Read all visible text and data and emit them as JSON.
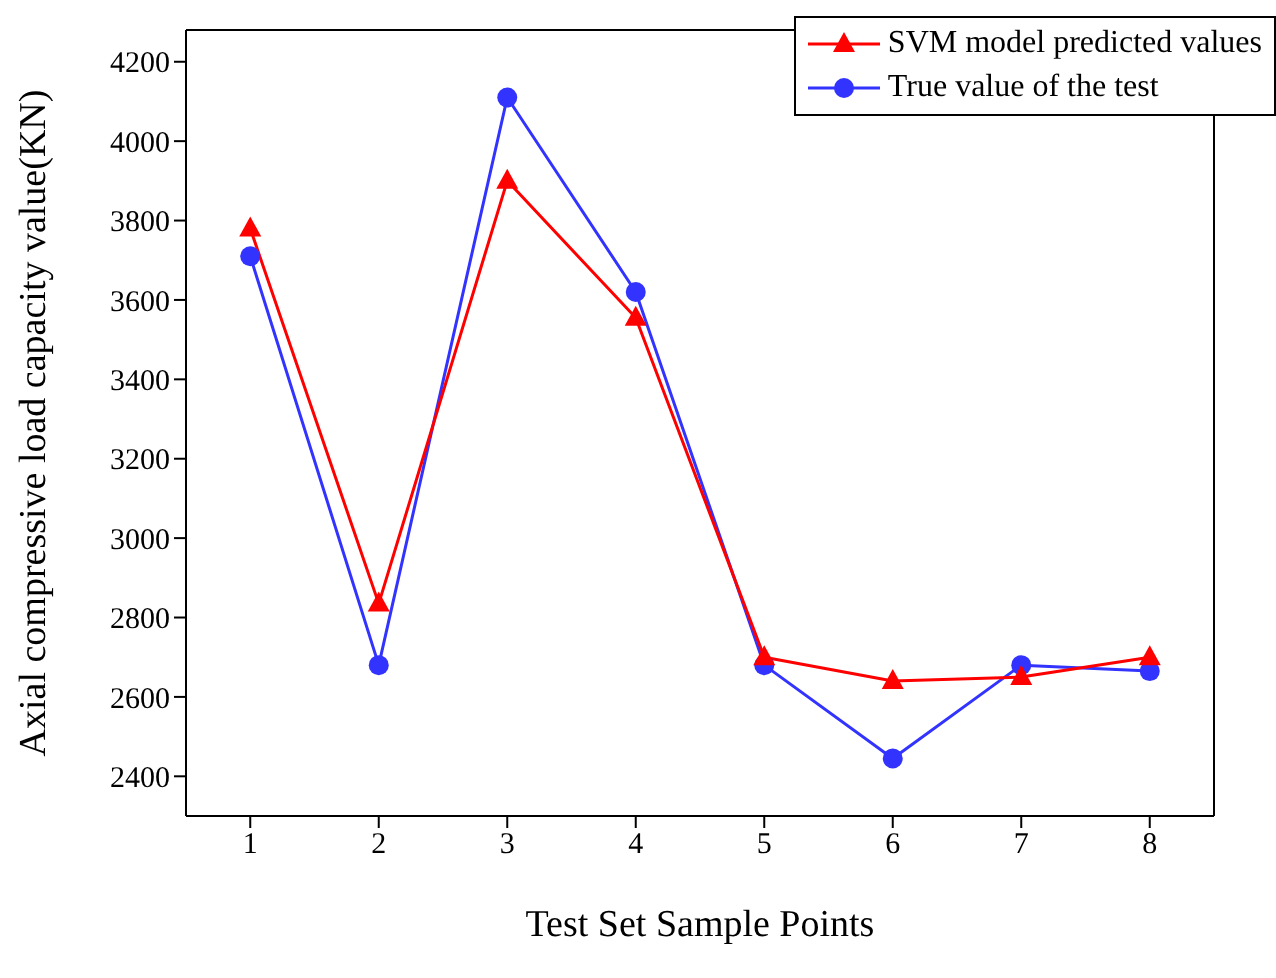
{
  "chart_data": {
    "type": "line",
    "xlabel": "Test Set Sample Points",
    "ylabel": "Axial compressive load capacity value(KN)",
    "x": [
      1,
      2,
      3,
      4,
      5,
      6,
      7,
      8
    ],
    "xlim": [
      0.5,
      8.5
    ],
    "xticks": [
      1,
      2,
      3,
      4,
      5,
      6,
      7,
      8
    ],
    "ylim": [
      2300,
      4280
    ],
    "yticks": [
      2400,
      2600,
      2800,
      3000,
      3200,
      3400,
      3600,
      3800,
      4000,
      4200
    ],
    "grid": false,
    "legend": "top right",
    "line_style": "solid",
    "series": [
      {
        "name": "SVM model predicted values",
        "color": "#ff0000",
        "marker": "triangle",
        "values": [
          3780,
          2835,
          3900,
          3555,
          2700,
          2640,
          2650,
          2700
        ]
      },
      {
        "name": "True value of the test",
        "color": "#3333ff",
        "marker": "circle",
        "values": [
          3710,
          2680,
          4110,
          3620,
          2680,
          2445,
          2680,
          2665
        ]
      }
    ]
  }
}
